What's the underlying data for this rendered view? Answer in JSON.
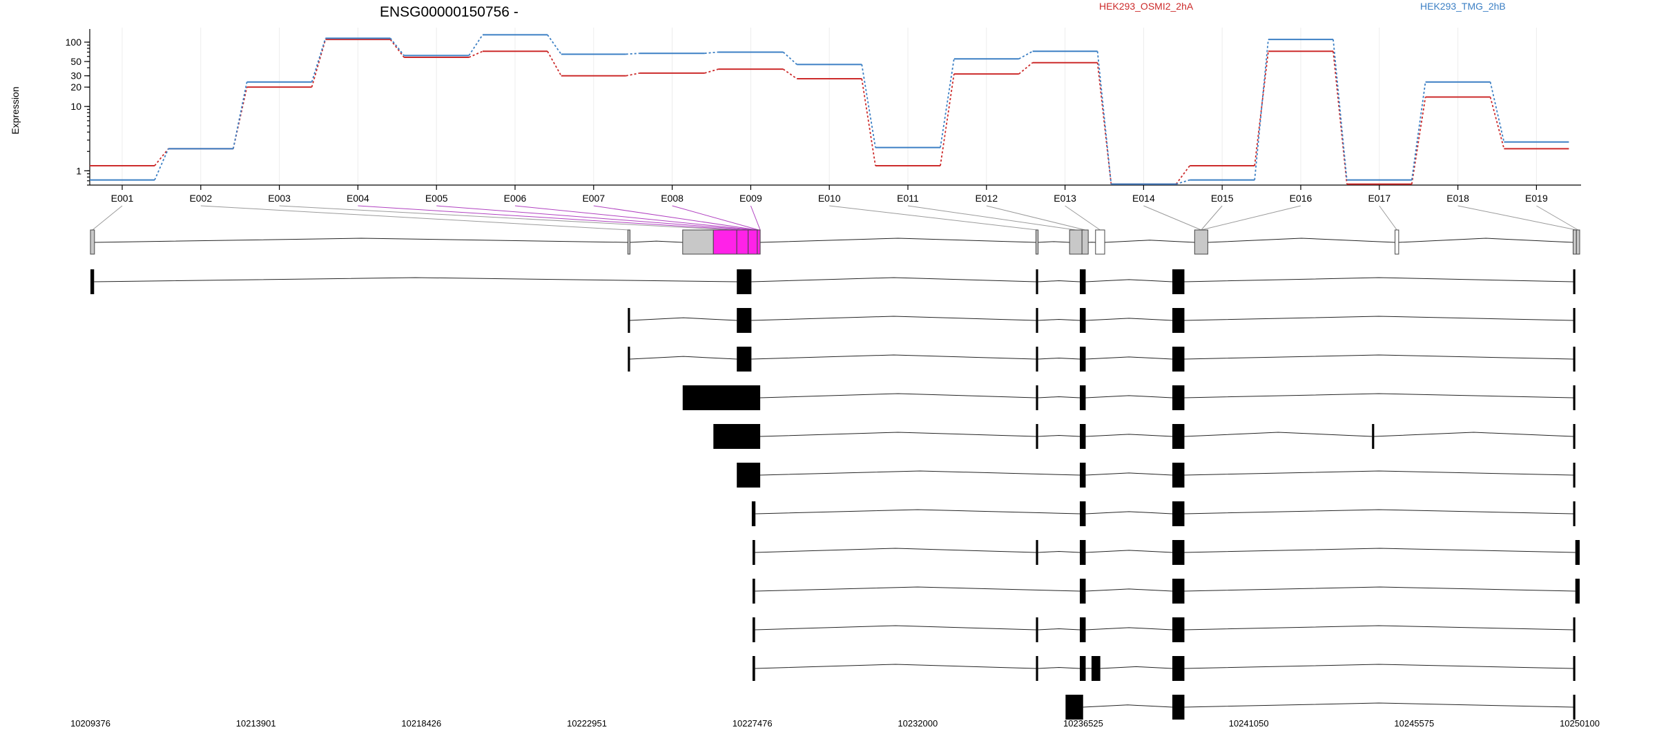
{
  "chart_data": {
    "type": "line",
    "title": "ENSG00000150756 -",
    "ylabel": "Expression",
    "yscale": "log",
    "ylim": [
      0.6,
      160
    ],
    "yticks": [
      1,
      10,
      20,
      30,
      50,
      100
    ],
    "grid": true,
    "legend_position": "top-right",
    "categories": [
      "E001",
      "E002",
      "E003",
      "E004",
      "E005",
      "E006",
      "E007",
      "E008",
      "E009",
      "E010",
      "E011",
      "E012",
      "E013",
      "E014",
      "E015",
      "E016",
      "E017",
      "E018",
      "E019"
    ],
    "series": [
      {
        "name": "HEK293_OSMI2_2hA",
        "color": "#cc2a2a",
        "values": [
          1.2,
          2.2,
          20,
          110,
          58,
          72,
          30,
          33,
          38,
          27,
          1.2,
          32,
          48,
          0.62,
          1.2,
          72,
          0.62,
          14,
          2.2
        ]
      },
      {
        "name": "HEK293_TMG_2hB",
        "color": "#3b7fc4",
        "values": [
          0.72,
          2.2,
          24,
          115,
          62,
          130,
          65,
          67,
          70,
          45,
          2.3,
          55,
          72,
          0.62,
          0.72,
          110,
          0.72,
          24,
          2.8
        ]
      }
    ],
    "genomic_coordinates": [
      "10209376",
      "10213901",
      "10218426",
      "10222951",
      "10227476",
      "10232000",
      "10236525",
      "10241050",
      "10245575",
      "10250100"
    ],
    "coord_range": [
      10209376,
      10250100
    ]
  },
  "gene_model": {
    "exons": [
      [
        10209376,
        10209486,
        "normal"
      ],
      [
        10224071,
        10224131,
        "normal"
      ],
      [
        10225571,
        10226411,
        "normal"
      ],
      [
        10226411,
        10227051,
        "highlight"
      ],
      [
        10227051,
        10227361,
        "highlight"
      ],
      [
        10227361,
        10227611,
        "highlight"
      ],
      [
        10227611,
        10227691,
        "highlight"
      ],
      [
        10235231,
        10235291,
        "normal"
      ],
      [
        10236151,
        10236491,
        "normal"
      ],
      [
        10236491,
        10236661,
        "normal"
      ],
      [
        10236861,
        10237111,
        "open"
      ],
      [
        10239571,
        10239931,
        "normal"
      ],
      [
        10245051,
        10245151,
        "open"
      ],
      [
        10249921,
        10250011,
        "normal"
      ],
      [
        10250011,
        10250100,
        "normal"
      ]
    ],
    "label_targets": [
      10209431,
      10224101,
      10226931,
      10227206,
      10227486,
      10227561,
      10227611,
      10227651,
      10227691,
      10235261,
      10236321,
      10236576,
      10236986,
      10239751,
      10239751,
      10239751,
      10245101,
      10250011,
      10250056
    ]
  },
  "transcripts": [
    [
      [
        10209376,
        10209476
      ],
      [
        10227051,
        10227451
      ],
      [
        10235231,
        10235291
      ],
      [
        10236431,
        10236591
      ],
      [
        10238961,
        10239291
      ],
      [
        10249921,
        10249981
      ]
    ],
    [
      [
        10224071,
        10224131
      ],
      [
        10227051,
        10227451
      ],
      [
        10235231,
        10235291
      ],
      [
        10236431,
        10236591
      ],
      [
        10238961,
        10239291
      ],
      [
        10249921,
        10249981
      ]
    ],
    [
      [
        10224071,
        10224131
      ],
      [
        10227051,
        10227451
      ],
      [
        10235231,
        10235291
      ],
      [
        10236431,
        10236591
      ],
      [
        10238961,
        10239291
      ],
      [
        10249921,
        10249981
      ]
    ],
    [
      [
        10225571,
        10227691
      ],
      [
        10235231,
        10235291
      ],
      [
        10236431,
        10236591
      ],
      [
        10238961,
        10239291
      ],
      [
        10249921,
        10249981
      ]
    ],
    [
      [
        10226411,
        10227691
      ],
      [
        10235231,
        10235291
      ],
      [
        10236431,
        10236591
      ],
      [
        10238961,
        10239291
      ],
      [
        10244421,
        10244481
      ],
      [
        10249921,
        10249981
      ]
    ],
    [
      [
        10227051,
        10227691
      ],
      [
        10236431,
        10236591
      ],
      [
        10238961,
        10239291
      ],
      [
        10249921,
        10249981
      ]
    ],
    [
      [
        10227461,
        10227561
      ],
      [
        10236431,
        10236591
      ],
      [
        10238961,
        10239291
      ],
      [
        10249921,
        10249981
      ]
    ],
    [
      [
        10227481,
        10227551
      ],
      [
        10235231,
        10235291
      ],
      [
        10236431,
        10236591
      ],
      [
        10238961,
        10239291
      ],
      [
        10249981,
        10250100
      ]
    ],
    [
      [
        10227481,
        10227551
      ],
      [
        10236431,
        10236591
      ],
      [
        10238961,
        10239291
      ],
      [
        10249981,
        10250100
      ]
    ],
    [
      [
        10227481,
        10227551
      ],
      [
        10235231,
        10235291
      ],
      [
        10236431,
        10236591
      ],
      [
        10238961,
        10239291
      ],
      [
        10249921,
        10249981
      ]
    ],
    [
      [
        10227481,
        10227551
      ],
      [
        10235231,
        10235291
      ],
      [
        10236431,
        10236591
      ],
      [
        10236751,
        10236991
      ],
      [
        10238961,
        10239291
      ],
      [
        10249921,
        10249981
      ]
    ],
    [
      [
        10236041,
        10236521
      ],
      [
        10238961,
        10239291
      ],
      [
        10249921,
        10249981
      ]
    ]
  ]
}
